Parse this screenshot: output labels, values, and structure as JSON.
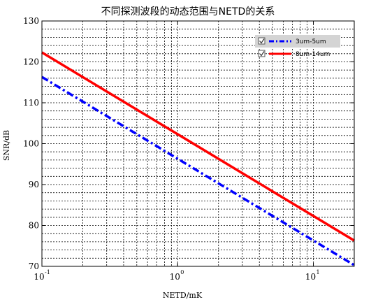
{
  "chart_data": {
    "type": "line",
    "title": "不同探测波段的动态范围与NETD的关系",
    "xlabel": "NETD/mK",
    "ylabel": "SNR/dB",
    "xscale": "log",
    "xlim": [
      0.1,
      20
    ],
    "ylim": [
      70,
      130
    ],
    "grid": true,
    "legend_position": "top-right",
    "x_tick_values": [
      0.1,
      1,
      10
    ],
    "x_tick_labels": [
      {
        "base": "10",
        "exp": "-1"
      },
      {
        "base": "10",
        "exp": "0"
      },
      {
        "base": "10",
        "exp": "1"
      }
    ],
    "y_ticks": [
      70,
      80,
      90,
      100,
      110,
      120,
      130
    ],
    "series": [
      {
        "name": "3um-5um",
        "color": "#0000ff",
        "style": "dashdot",
        "x": [
          0.1,
          20
        ],
        "y": [
          116.3,
          70.3
        ]
      },
      {
        "name": "8um-14um",
        "color": "#ff0000",
        "style": "solid",
        "x": [
          0.1,
          20
        ],
        "y": [
          122.3,
          76.3
        ]
      }
    ]
  }
}
